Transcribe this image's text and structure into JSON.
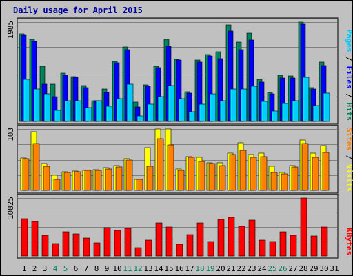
{
  "chart_data": {
    "type": "bar",
    "title": "Daily usage for April 2015",
    "categories": [
      "1",
      "2",
      "3",
      "4",
      "5",
      "6",
      "7",
      "8",
      "9",
      "10",
      "11",
      "12",
      "13",
      "14",
      "15",
      "16",
      "17",
      "18",
      "19",
      "20",
      "21",
      "22",
      "23",
      "24",
      "25",
      "26",
      "27",
      "28",
      "29",
      "30",
      "31"
    ],
    "weekend_days": [
      "4",
      "5",
      "11",
      "12",
      "18",
      "19",
      "25",
      "26"
    ],
    "panels": [
      {
        "name": "hits-files-pages",
        "ymax": 1985,
        "legend": [
          "Pages",
          "Files",
          "Hits"
        ],
        "series": [
          {
            "name": "Hits",
            "color": "#00805c",
            "values": [
              1750,
              1640,
              1100,
              750,
              960,
              900,
              710,
              420,
              650,
              1195,
              1490,
              380,
              725,
              1100,
              1640,
              1245,
              590,
              1220,
              1340,
              1390,
              1930,
              1580,
              1770,
              835,
              580,
              920,
              910,
              1985,
              680,
              1190,
              0
            ]
          },
          {
            "name": "Files",
            "color": "#0000ff",
            "values": [
              1720,
              1600,
              750,
              500,
              920,
              880,
              680,
              420,
              580,
              1175,
              1435,
              290,
              705,
              1080,
              1500,
              1225,
              560,
              1190,
              1310,
              1250,
              1810,
              1430,
              1630,
              790,
              555,
              870,
              870,
              1950,
              650,
              1120,
              0
            ]
          },
          {
            "name": "Pages",
            "color": "#00ccff",
            "values": [
              835,
              650,
              550,
              220,
              420,
              420,
              280,
              420,
              310,
              460,
              750,
              110,
              350,
              500,
              710,
              460,
              190,
              350,
              550,
              420,
              650,
              650,
              700,
              400,
              210,
              360,
              420,
              880,
              320,
              560,
              0
            ]
          }
        ]
      },
      {
        "name": "visits-sites",
        "ymax": 103,
        "legend": [
          "Sites",
          "Visits"
        ],
        "series": [
          {
            "name": "Visits",
            "color": "#ffff00",
            "values": [
              54,
              98,
              45,
              25,
              31,
              32,
              34,
              35,
              38,
              42,
              53,
              18,
              72,
              103,
              103,
              36,
              57,
              55,
              46,
              46,
              63,
              80,
              60,
              62,
              41,
              30,
              42,
              84,
              63,
              75,
              0
            ]
          },
          {
            "name": "Sites",
            "color": "#ff8000",
            "values": [
              53,
              79,
              40,
              19,
              30,
              31,
              33,
              34,
              36,
              39,
              51,
              18,
              40,
              87,
              76,
              34,
              55,
              49,
              45,
              42,
              60,
              67,
              55,
              57,
              30,
              28,
              39,
              79,
              55,
              64,
              0
            ]
          }
        ]
      },
      {
        "name": "kbytes",
        "ymax": 10825,
        "legend": [
          "KBytes"
        ],
        "series": [
          {
            "name": "KBytes",
            "color": "#ff0000",
            "values": [
              6900,
              6400,
              3850,
              2300,
              4550,
              4100,
              3300,
              2500,
              5250,
              4750,
              5150,
              1500,
              3000,
              6200,
              5400,
              2250,
              4050,
              6150,
              2700,
              6850,
              7200,
              5550,
              6650,
              3000,
              2650,
              4450,
              3900,
              10825,
              3700,
              5350,
              0
            ]
          }
        ]
      }
    ]
  }
}
